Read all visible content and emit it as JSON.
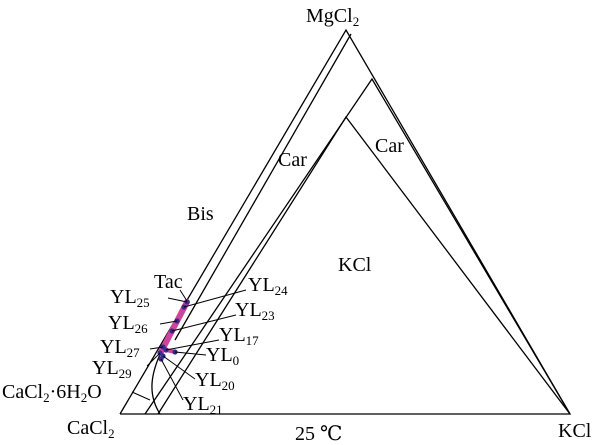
{
  "vertices": {
    "top": "MgCl",
    "top_sub": "2",
    "left": "CaCl",
    "left_sub": "2",
    "right": "KCl"
  },
  "regions": {
    "car_inner": "Car",
    "car_outer": "Car",
    "bis": "Bis",
    "kcl": "KCl",
    "tac": "Tac",
    "cacl2_hydrate_prefix": "CaCl",
    "cacl2_hydrate_sub1": "2",
    "cacl2_hydrate_mid": "·6H",
    "cacl2_hydrate_sub2": "2",
    "cacl2_hydrate_suffix": "O"
  },
  "temperature": "25 ℃",
  "points": [
    {
      "name": "YL",
      "sub": "25"
    },
    {
      "name": "YL",
      "sub": "26"
    },
    {
      "name": "YL",
      "sub": "27"
    },
    {
      "name": "YL",
      "sub": "29"
    },
    {
      "name": "YL",
      "sub": "24"
    },
    {
      "name": "YL",
      "sub": "23"
    },
    {
      "name": "YL",
      "sub": "17"
    },
    {
      "name": "YL",
      "sub": "0"
    },
    {
      "name": "YL",
      "sub": "20"
    },
    {
      "name": "YL",
      "sub": "21"
    }
  ],
  "colors": {
    "highlight": "#d1449c",
    "point": "#3a2a8c",
    "line": "#000000"
  }
}
